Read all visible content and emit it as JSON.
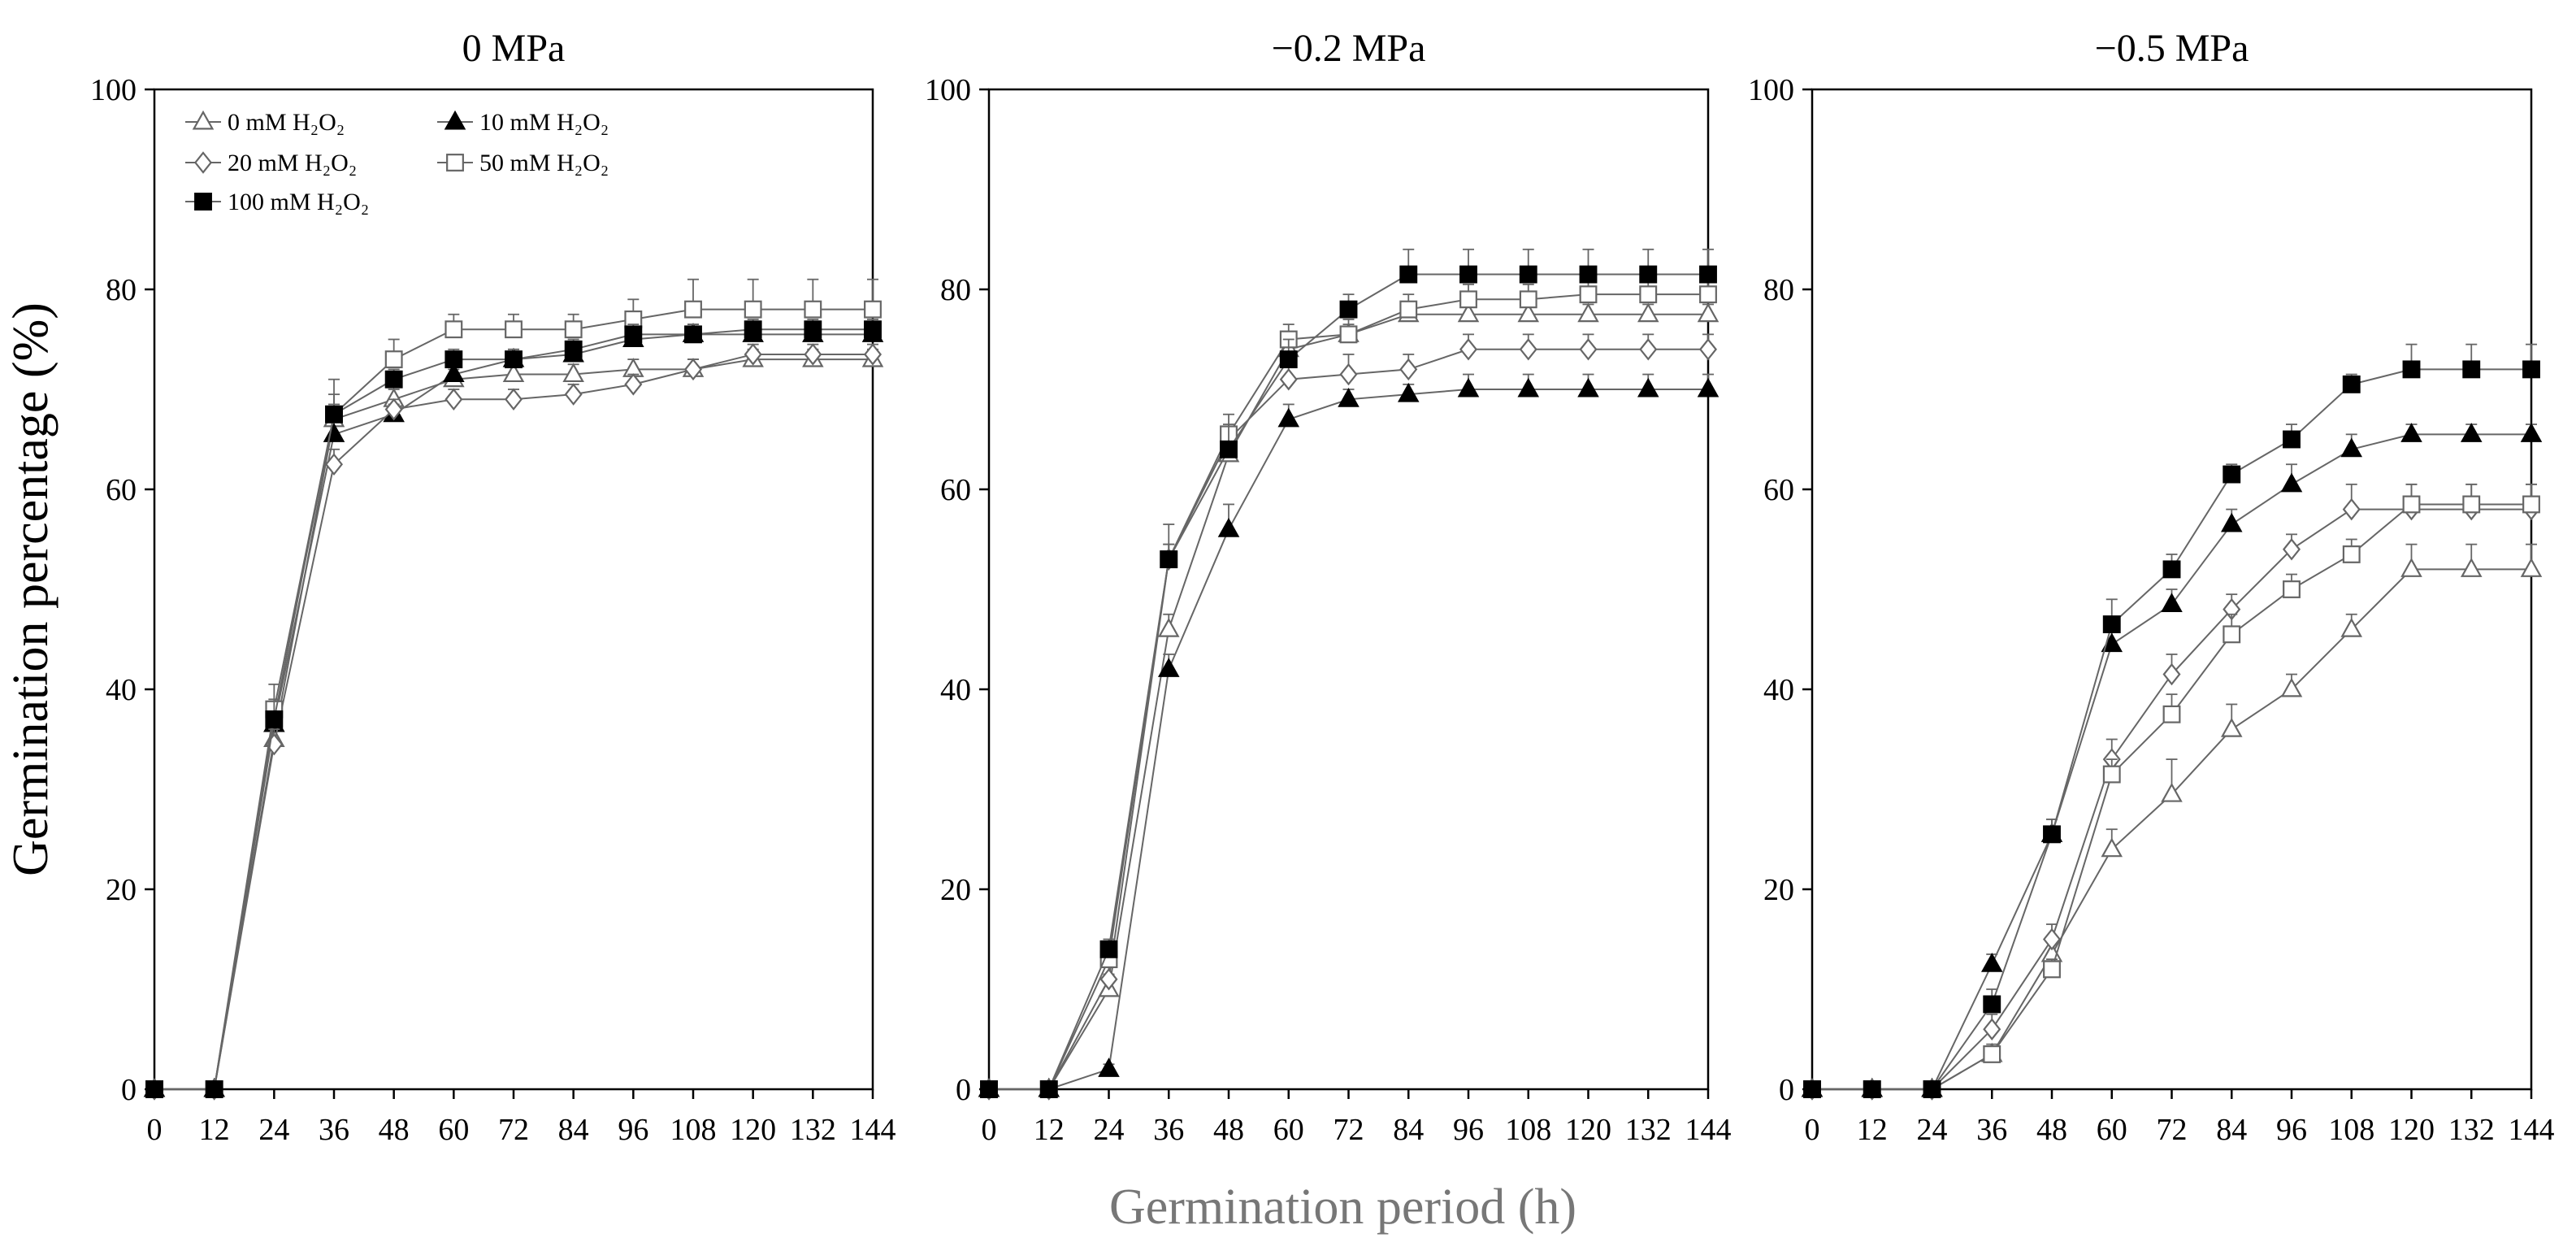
{
  "chart_data": {
    "type": "line",
    "shared_ylabel": "Germination percentage (%)",
    "shared_xlabel": "Germination period (h)",
    "x": [
      0,
      12,
      24,
      36,
      48,
      60,
      72,
      84,
      96,
      108,
      120,
      132,
      144
    ],
    "x_tick_labels": [
      "0",
      "12",
      "24",
      "36",
      "48",
      "60",
      "72",
      "84",
      "96",
      "108",
      "120",
      "132",
      "144"
    ],
    "xlim": [
      0,
      144
    ],
    "ylim": [
      0,
      100
    ],
    "y_ticks": [
      0,
      20,
      40,
      60,
      80,
      100
    ],
    "y_tick_labels": [
      "0",
      "20",
      "40",
      "60",
      "80",
      "100"
    ],
    "colors": {
      "line": "#666666",
      "axis": "#000000",
      "filled_marker": "#000000",
      "open_marker": "#ffffff",
      "xlabel": "#777777"
    },
    "legend": {
      "placement": "top-left of first panel",
      "entries": [
        {
          "label": "0 mM H₂O₂",
          "marker": "open-triangle"
        },
        {
          "label": "10 mM  H₂O₂",
          "marker": "filled-triangle"
        },
        {
          "label": "20 mM  H₂O₂",
          "marker": "open-diamond"
        },
        {
          "label": "50 mM  H₂O₂",
          "marker": "open-square"
        },
        {
          "label": "100 mM  H₂O₂",
          "marker": "filled-square"
        }
      ]
    },
    "panels": [
      {
        "title": "0 MPa",
        "series": [
          {
            "name": "0 mM H₂O₂",
            "marker": "open-triangle",
            "values": [
              0,
              0,
              35,
              67,
              69,
              71,
              71.5,
              71.5,
              72,
              72,
              73,
              73,
              73
            ],
            "errors": [
              0,
              0,
              1.5,
              1.5,
              1,
              1,
              1,
              1,
              1,
              1,
              1,
              1,
              1
            ]
          },
          {
            "name": "10 mM H₂O₂",
            "marker": "filled-triangle",
            "values": [
              0,
              0,
              36.5,
              65.5,
              67.5,
              71.5,
              73,
              73.5,
              75,
              75.5,
              75.5,
              75.5,
              75.5
            ],
            "errors": [
              0,
              0,
              1.5,
              1.5,
              1,
              1,
              1,
              1,
              1,
              1,
              1,
              1,
              1
            ]
          },
          {
            "name": "20 mM H₂O₂",
            "marker": "open-diamond",
            "values": [
              0,
              0,
              34.5,
              62.5,
              68,
              69,
              69,
              69.5,
              70.5,
              72,
              73.5,
              73.5,
              73.5
            ],
            "errors": [
              0,
              0,
              1.5,
              1.5,
              1,
              1,
              1,
              1,
              1,
              1,
              1,
              1,
              1
            ]
          },
          {
            "name": "50 mM H₂O₂",
            "marker": "open-square",
            "values": [
              0,
              0,
              38,
              67.5,
              73,
              76,
              76,
              76,
              77,
              78,
              78,
              78,
              78
            ],
            "errors": [
              0,
              0,
              2.5,
              3.5,
              2,
              1.5,
              1.5,
              1.5,
              2,
              3,
              3,
              3,
              3
            ]
          },
          {
            "name": "100 mM H₂O₂",
            "marker": "filled-square",
            "values": [
              0,
              0,
              37,
              67.5,
              71,
              73,
              73,
              74,
              75.5,
              75.5,
              76,
              76,
              76
            ],
            "errors": [
              0,
              0,
              2,
              2,
              1,
              1,
              1,
              1,
              1,
              1,
              1,
              1,
              1
            ]
          }
        ]
      },
      {
        "title": "−0.2 MPa",
        "series": [
          {
            "name": "0 mM H₂O₂",
            "marker": "open-triangle",
            "values": [
              0,
              0,
              10,
              46,
              63.5,
              74,
              75.5,
              77.5,
              77.5,
              77.5,
              77.5,
              77.5,
              77.5
            ],
            "errors": [
              0,
              0,
              1.5,
              1.5,
              1,
              1,
              1,
              1,
              1,
              1,
              1,
              1,
              1
            ]
          },
          {
            "name": "10 mM H₂O₂",
            "marker": "filled-triangle",
            "values": [
              0,
              0,
              2,
              42,
              56,
              67,
              69,
              69.5,
              70,
              70,
              70,
              70,
              70
            ],
            "errors": [
              0,
              0,
              0.5,
              1.5,
              2.5,
              1.5,
              1,
              1,
              1.5,
              1.5,
              1.5,
              1.5,
              1.5
            ]
          },
          {
            "name": "20 mM H₂O₂",
            "marker": "open-diamond",
            "values": [
              0,
              0,
              11,
              53,
              65,
              71,
              71.5,
              72,
              74,
              74,
              74,
              74,
              74
            ],
            "errors": [
              0,
              0,
              1.5,
              1.5,
              1,
              1.5,
              2,
              1.5,
              1.5,
              1.5,
              1.5,
              1.5,
              1.5
            ]
          },
          {
            "name": "50 mM H₂O₂",
            "marker": "open-square",
            "values": [
              0,
              0,
              13,
              53,
              65.5,
              75,
              75.5,
              78,
              79,
              79,
              79.5,
              79.5,
              79.5
            ],
            "errors": [
              0,
              0,
              1.5,
              1.5,
              2,
              1.5,
              1.5,
              1.5,
              1.5,
              1.5,
              1.5,
              1.5,
              1.5
            ]
          },
          {
            "name": "100 mM H₂O₂",
            "marker": "filled-square",
            "values": [
              0,
              0,
              14,
              53,
              64,
              73,
              78,
              81.5,
              81.5,
              81.5,
              81.5,
              81.5,
              81.5
            ],
            "errors": [
              0,
              0,
              1,
              3.5,
              2.5,
              2,
              1.5,
              2.5,
              2.5,
              2.5,
              2.5,
              2.5,
              2.5
            ]
          }
        ]
      },
      {
        "title": "−0.5 MPa",
        "series": [
          {
            "name": "0 mM H₂O₂",
            "marker": "open-triangle",
            "values": [
              0,
              0,
              0,
              3.5,
              13.5,
              24,
              29.5,
              36,
              40,
              46,
              52,
              52,
              52
            ],
            "errors": [
              0,
              0,
              0,
              1,
              1.5,
              2,
              3.5,
              2.5,
              1.5,
              1.5,
              2.5,
              2.5,
              2.5
            ]
          },
          {
            "name": "10 mM H₂O₂",
            "marker": "filled-triangle",
            "values": [
              0,
              0,
              0,
              12.5,
              25.5,
              44.5,
              48.5,
              56.5,
              60.5,
              64,
              65.5,
              65.5,
              65.5
            ],
            "errors": [
              0,
              0,
              0,
              1,
              1.5,
              2,
              1.5,
              1.5,
              2,
              1.5,
              1,
              1,
              1
            ]
          },
          {
            "name": "20 mM H₂O₂",
            "marker": "open-diamond",
            "values": [
              0,
              0,
              0,
              6,
              15,
              33,
              41.5,
              48,
              54,
              58,
              58,
              58,
              58
            ],
            "errors": [
              0,
              0,
              0,
              1.5,
              1.5,
              2,
              2,
              1.5,
              1.5,
              2.5,
              2.5,
              2.5,
              2.5
            ]
          },
          {
            "name": "50 mM H₂O₂",
            "marker": "open-square",
            "values": [
              0,
              0,
              0,
              3.5,
              12,
              31.5,
              37.5,
              45.5,
              50,
              53.5,
              58.5,
              58.5,
              58.5
            ],
            "errors": [
              0,
              0,
              0,
              0.5,
              1,
              1.5,
              2,
              2,
              1.5,
              1.5,
              2,
              2,
              2
            ]
          },
          {
            "name": "100 mM H₂O₂",
            "marker": "filled-square",
            "values": [
              0,
              0,
              0,
              8.5,
              25.5,
              46.5,
              52,
              61.5,
              65,
              70.5,
              72,
              72,
              72
            ],
            "errors": [
              0,
              0,
              0,
              1.5,
              1.5,
              2.5,
              1.5,
              1,
              1.5,
              1,
              2.5,
              2.5,
              2.5
            ]
          }
        ]
      }
    ]
  }
}
